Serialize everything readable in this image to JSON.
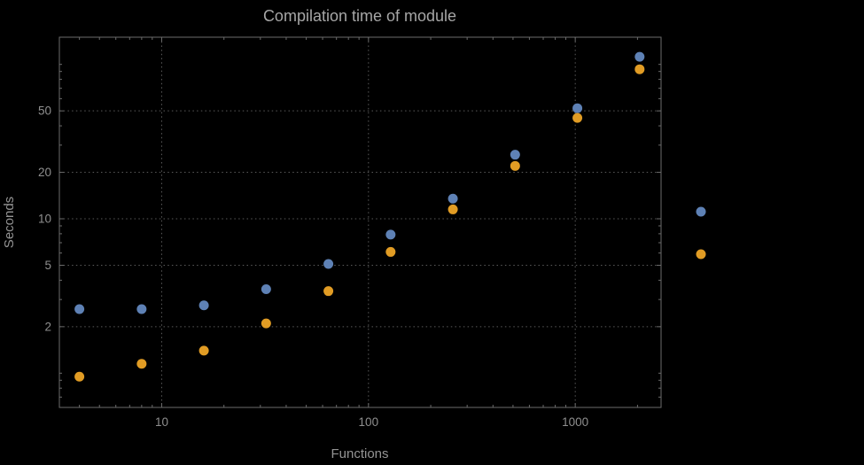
{
  "chart_data": {
    "type": "scatter",
    "title": "Compilation time of module",
    "xlabel": "Functions",
    "ylabel": "Seconds",
    "x_scale": "log",
    "y_scale": "log",
    "grid": "dotted",
    "xlim": [
      3.2,
      2600
    ],
    "ylim": [
      0.6,
      150
    ],
    "x_ticks": [
      10,
      100,
      1000
    ],
    "x_tick_labels": [
      "10",
      "100",
      "1000"
    ],
    "y_ticks": [
      2,
      5,
      10,
      20,
      50
    ],
    "y_tick_labels": [
      "2",
      "5",
      "10",
      "20",
      "50"
    ],
    "x": [
      4,
      8,
      16,
      32,
      64,
      128,
      256,
      512,
      1024,
      2048
    ],
    "series": [
      {
        "name": "blue",
        "color": "#5e81b5",
        "values": [
          2.6,
          2.6,
          2.75,
          3.5,
          5.1,
          7.9,
          13.5,
          26,
          52,
          112
        ]
      },
      {
        "name": "orange",
        "color": "#e19c24",
        "values": [
          0.95,
          1.15,
          1.4,
          2.1,
          3.4,
          6.1,
          11.5,
          22,
          45,
          93
        ]
      }
    ]
  },
  "legend": {
    "markers": [
      {
        "name": "blue-marker",
        "color": "#5e81b5"
      },
      {
        "name": "orange-marker",
        "color": "#e19c24"
      }
    ]
  },
  "colors": {
    "background": "#000000",
    "grid": "#5a5a5a",
    "frame": "#6b6b6b",
    "tick_text": "#8f8f8f",
    "title_text": "#a6a6a6"
  }
}
